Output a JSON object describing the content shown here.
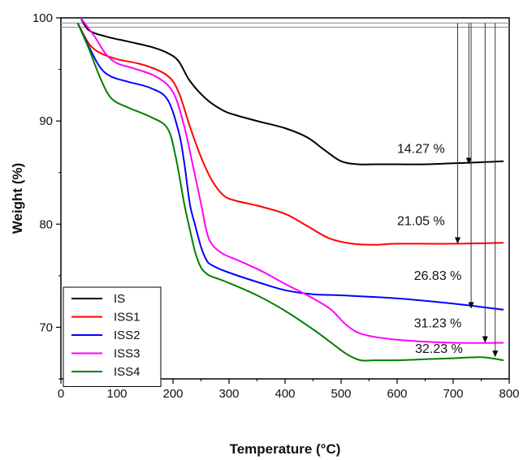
{
  "chart_data": {
    "type": "line",
    "xlabel": "Temperature (°C)",
    "ylabel": "Weight (%)",
    "xlim": [
      0,
      800
    ],
    "ylim": [
      65,
      100
    ],
    "xticks": [
      0,
      100,
      200,
      300,
      400,
      500,
      600,
      700,
      800
    ],
    "yticks": [
      70,
      80,
      90,
      100
    ],
    "grid": false,
    "legend_position": "bottom-left",
    "series": [
      {
        "name": "IS",
        "color": "#000000",
        "x": [
          35,
          50,
          80,
          120,
          160,
          190,
          210,
          230,
          260,
          290,
          310,
          350,
          400,
          440,
          470,
          500,
          530,
          560,
          600,
          650,
          700,
          750,
          790
        ],
        "y": [
          100,
          98.8,
          98.2,
          97.7,
          97.2,
          96.6,
          95.8,
          93.9,
          92.1,
          91.0,
          90.6,
          90.0,
          89.3,
          88.4,
          87.2,
          86.1,
          85.8,
          85.8,
          85.8,
          85.8,
          85.9,
          86.0,
          86.1
        ]
      },
      {
        "name": "ISS1",
        "color": "#ff0000",
        "x": [
          30,
          50,
          70,
          100,
          150,
          190,
          210,
          230,
          250,
          270,
          290,
          310,
          350,
          400,
          440,
          480,
          520,
          560,
          600,
          700,
          790
        ],
        "y": [
          99.5,
          97.5,
          96.6,
          96.0,
          95.4,
          94.4,
          92.8,
          89.5,
          86.5,
          84.2,
          82.8,
          82.3,
          81.8,
          81.0,
          79.8,
          78.6,
          78.1,
          78.0,
          78.1,
          78.1,
          78.2
        ]
      },
      {
        "name": "ISS2",
        "color": "#0000ff",
        "x": [
          30,
          50,
          70,
          90,
          120,
          160,
          190,
          210,
          220,
          230,
          240,
          250,
          260,
          270,
          300,
          350,
          400,
          450,
          500,
          600,
          700,
          790
        ],
        "y": [
          99.5,
          97.2,
          95.2,
          94.3,
          93.8,
          93.2,
          92.1,
          89.0,
          86.0,
          82.0,
          79.8,
          77.8,
          76.5,
          76.0,
          75.3,
          74.4,
          73.6,
          73.2,
          73.1,
          72.8,
          72.3,
          71.7
        ]
      },
      {
        "name": "ISS3",
        "color": "#ff00ff",
        "x": [
          35,
          60,
          80,
          100,
          130,
          170,
          200,
          220,
          235,
          250,
          260,
          270,
          290,
          320,
          360,
          400,
          440,
          480,
          510,
          540,
          600,
          700,
          790
        ],
        "y": [
          100,
          98.2,
          96.5,
          95.6,
          95.1,
          94.3,
          92.8,
          89.5,
          85.8,
          82.0,
          79.3,
          78.0,
          77.1,
          76.4,
          75.4,
          74.2,
          73.1,
          71.8,
          70.2,
          69.3,
          68.8,
          68.5,
          68.5
        ]
      },
      {
        "name": "ISS4",
        "color": "#008000",
        "x": [
          30,
          50,
          70,
          90,
          120,
          160,
          190,
          205,
          220,
          230,
          240,
          250,
          260,
          270,
          300,
          350,
          400,
          450,
          480,
          510,
          535,
          560,
          600,
          650,
          700,
          750,
          790
        ],
        "y": [
          99.5,
          97.0,
          94.2,
          92.2,
          91.3,
          90.4,
          89.3,
          86.5,
          82.0,
          79.5,
          77.2,
          75.8,
          75.2,
          74.9,
          74.3,
          73.1,
          71.6,
          69.8,
          68.6,
          67.4,
          66.8,
          66.8,
          66.8,
          66.9,
          67.0,
          67.1,
          66.8
        ]
      }
    ],
    "annotations": [
      {
        "text": "14.27 %",
        "x": 728,
        "y": 85.8,
        "label_x": 600,
        "label_y": 86.9
      },
      {
        "text": "21.05 %",
        "x": 708,
        "y": 78.1,
        "label_x": 600,
        "label_y": 79.9
      },
      {
        "text": "26.83 %",
        "x": 732,
        "y": 71.8,
        "label_x": 630,
        "label_y": 74.6
      },
      {
        "text": "31.23 %",
        "x": 757,
        "y": 68.5,
        "label_x": 630,
        "label_y": 70.0
      },
      {
        "text": "32.23 %",
        "x": 775,
        "y": 67.1,
        "label_x": 632,
        "label_y": 67.5
      }
    ],
    "reference_lines_y": [
      99.5,
      99.1
    ]
  }
}
